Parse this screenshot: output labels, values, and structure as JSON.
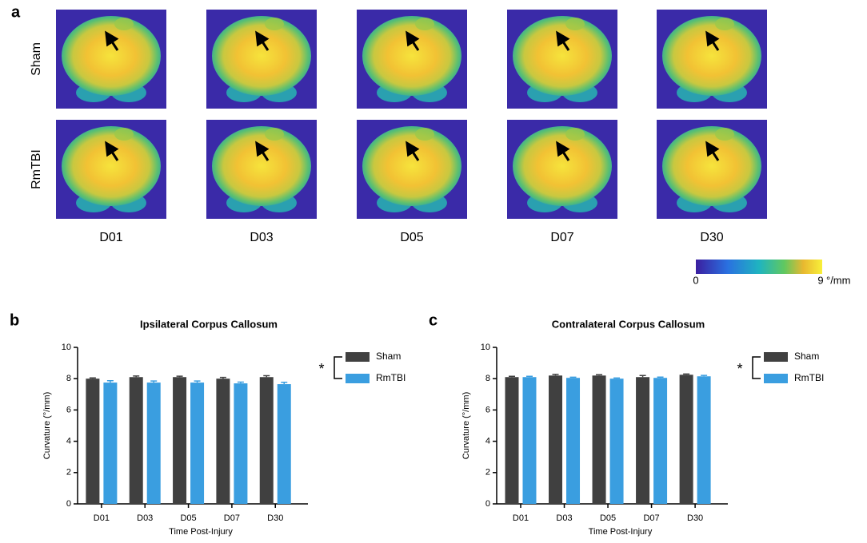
{
  "figure_a": {
    "panel": "a",
    "row_labels": [
      "Sham",
      "RmTBI"
    ],
    "column_labels": [
      "D01",
      "D03",
      "D05",
      "D07",
      "D30"
    ],
    "colorbar": {
      "range": [
        0,
        9
      ],
      "unit": "°/mm"
    }
  },
  "chart_data": [
    {
      "type": "bar",
      "panel": "b",
      "title": "Ipsilateral Corpus Callosum",
      "x_label": "Time Post-Injury",
      "y_label": "Curvature (°/mm)",
      "categories": [
        "D01",
        "D03",
        "D05",
        "D07",
        "D30"
      ],
      "series": [
        {
          "name": "Sham",
          "color": "#404040",
          "values": [
            8.0,
            8.1,
            8.1,
            8.0,
            8.1
          ],
          "errors": [
            0.05,
            0.07,
            0.06,
            0.08,
            0.09
          ]
        },
        {
          "name": "RmTBI",
          "color": "#3a9ee0",
          "values": [
            7.75,
            7.75,
            7.75,
            7.7,
            7.65
          ],
          "errors": [
            0.12,
            0.1,
            0.1,
            0.08,
            0.12
          ]
        }
      ],
      "ylim": [
        0,
        10
      ],
      "yticks": [
        0,
        2,
        4,
        6,
        8,
        10
      ],
      "significance": "*"
    },
    {
      "type": "bar",
      "panel": "c",
      "title": "Contralateral Corpus Callosum",
      "x_label": "Time Post-Injury",
      "y_label": "Curvature (°/mm)",
      "categories": [
        "D01",
        "D03",
        "D05",
        "D07",
        "D30"
      ],
      "series": [
        {
          "name": "Sham",
          "color": "#404040",
          "values": [
            8.1,
            8.2,
            8.2,
            8.1,
            8.25
          ],
          "errors": [
            0.05,
            0.07,
            0.05,
            0.1,
            0.05
          ]
        },
        {
          "name": "RmTBI",
          "color": "#3a9ee0",
          "values": [
            8.1,
            8.05,
            8.0,
            8.05,
            8.15
          ],
          "errors": [
            0.05,
            0.04,
            0.04,
            0.05,
            0.06
          ]
        }
      ],
      "ylim": [
        0,
        10
      ],
      "yticks": [
        0,
        2,
        4,
        6,
        8,
        10
      ],
      "significance": "*"
    }
  ]
}
